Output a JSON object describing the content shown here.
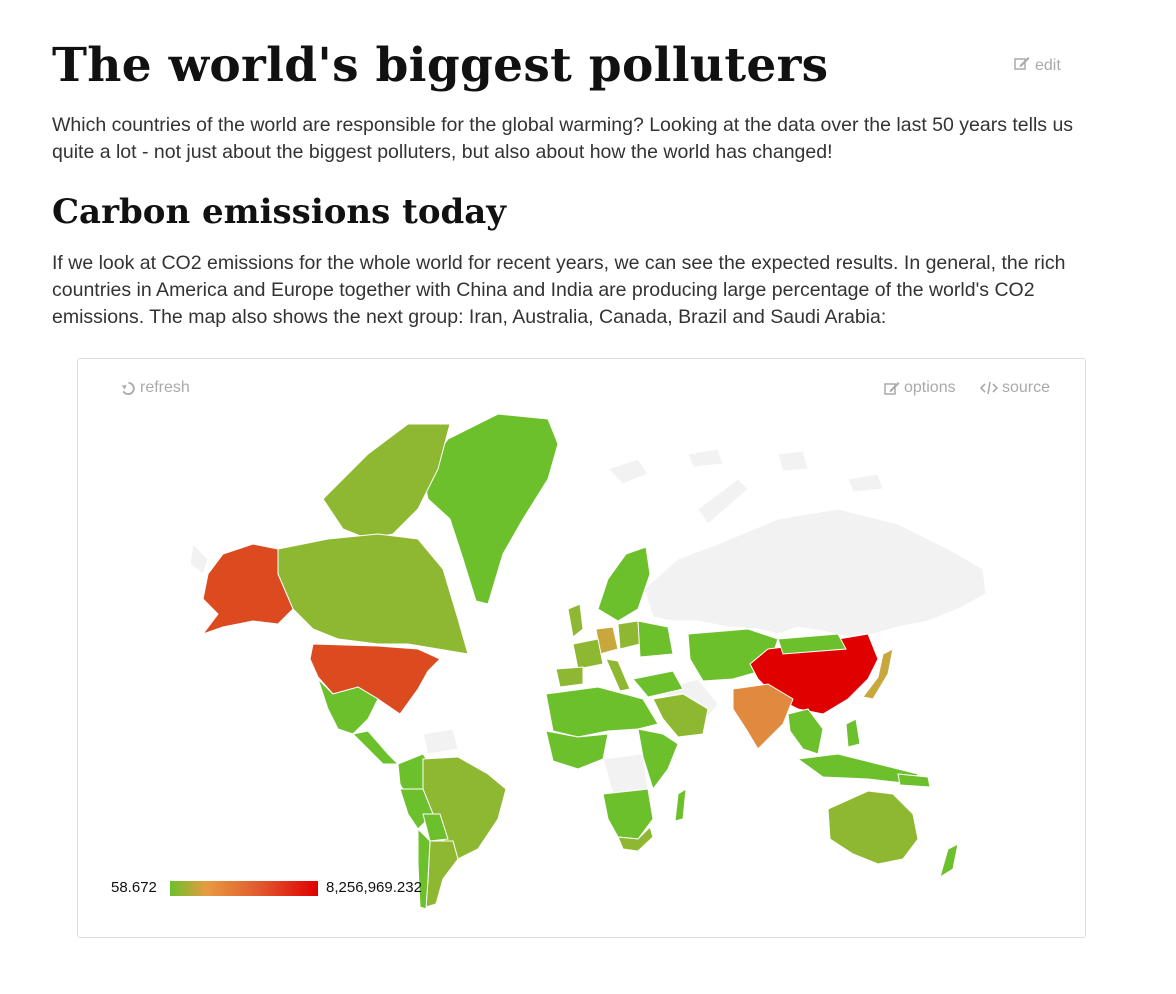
{
  "page": {
    "title": "The world's biggest polluters",
    "edit_label": "edit",
    "intro": "Which countries of the world are responsible for the global warming? Looking at the data over the last 50 years tells us quite a lot - not just about the biggest polluters, but also about how the world has changed!",
    "section_title": "Carbon emissions today",
    "section_text": "If we look at CO2 emissions for the whole world for recent years, we can see the expected results. In general, the rich countries in America and Europe together with China and India are producing large percentage of the world's CO2 emissions. The map also shows the next group: Iran, Australia, Canada, Brazil and Saudi Arabia:"
  },
  "widget": {
    "refresh_label": "refresh",
    "options_label": "options",
    "source_label": "source",
    "icons": [
      "refresh-icon",
      "edit-icon",
      "code-icon"
    ]
  },
  "legend": {
    "min": "58.672",
    "max": "8,256,969.232",
    "colors": [
      "#6cc02c",
      "#e89a40",
      "#e05a30",
      "#e00000"
    ]
  },
  "colors": {
    "no_data": "#f2f2f2",
    "low": "#6cc02c",
    "low_mid": "#8fb832",
    "mid": "#c8a83c",
    "high_mid": "#e08a40",
    "high": "#dc4a20",
    "highest": "#e00000"
  }
}
